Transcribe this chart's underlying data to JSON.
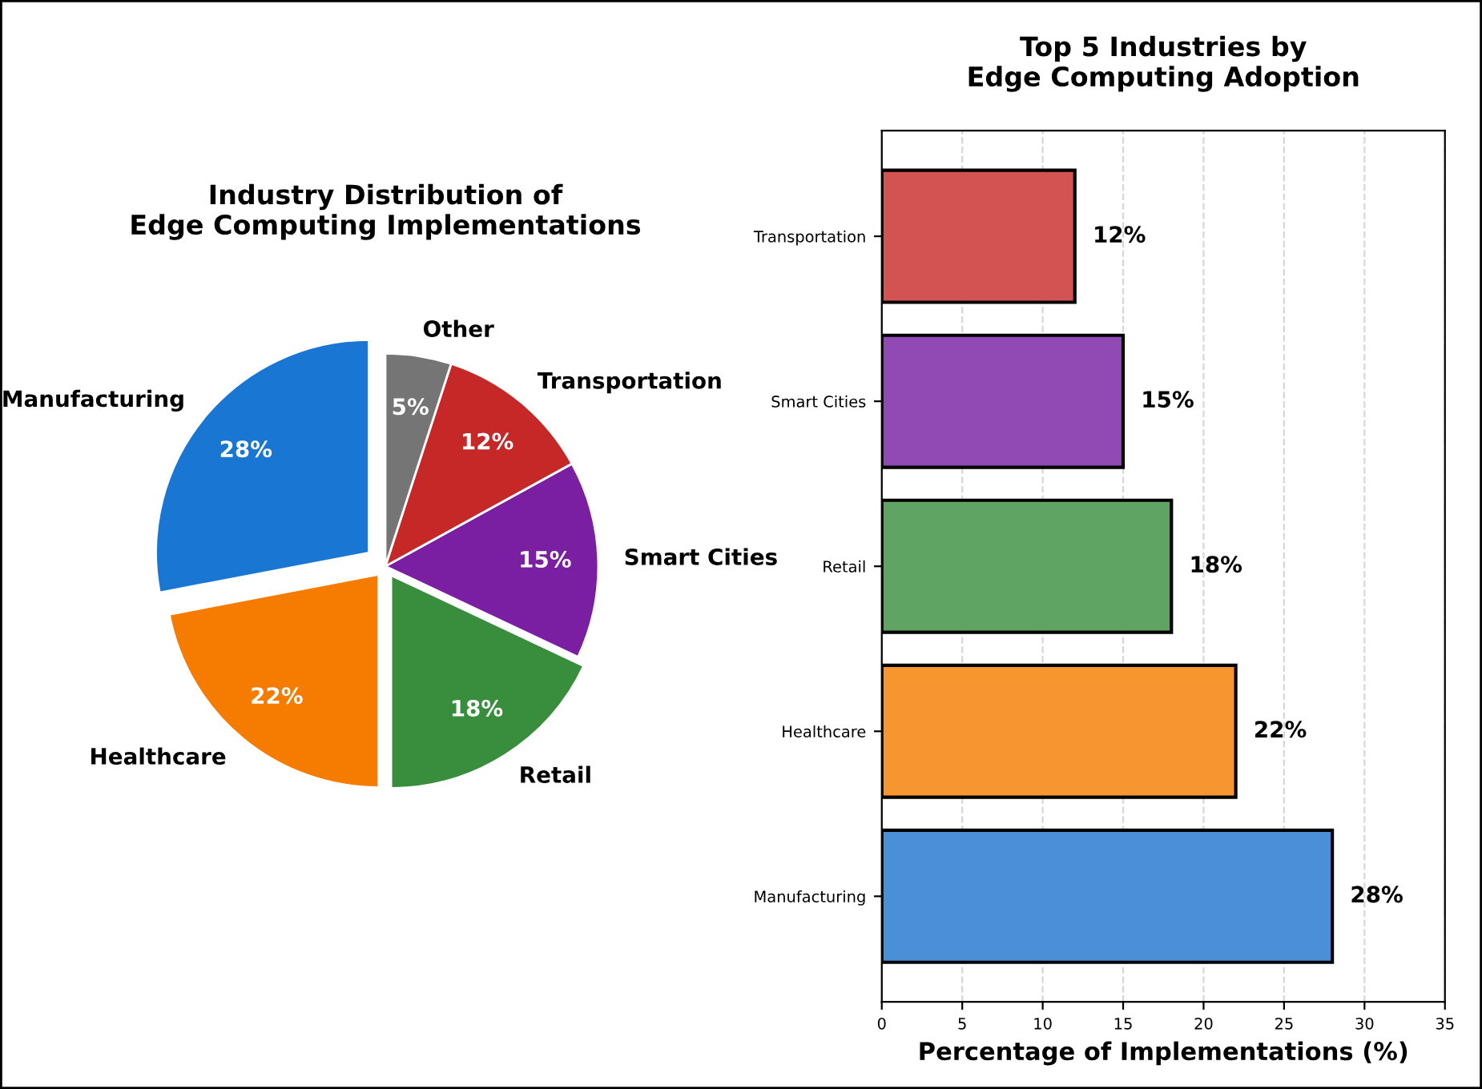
{
  "chart_data": [
    {
      "type": "pie",
      "title": "Industry Distribution of\nEdge Computing Implementations",
      "categories": [
        "Manufacturing",
        "Healthcare",
        "Retail",
        "Smart Cities",
        "Transportation",
        "Other"
      ],
      "values": [
        28,
        22,
        18,
        15,
        12,
        5
      ],
      "colors": [
        "#1976d2",
        "#f57c00",
        "#388e3c",
        "#7b1fa2",
        "#c62828",
        "#757575"
      ],
      "value_labels": [
        "28%",
        "22%",
        "18%",
        "15%",
        "12%",
        "5%"
      ]
    },
    {
      "type": "bar",
      "orientation": "horizontal",
      "title": "Top 5 Industries by\nEdge Computing Adoption",
      "xlabel": "Percentage of Implementations (%)",
      "categories": [
        "Transportation",
        "Smart Cities",
        "Retail",
        "Healthcare",
        "Manufacturing"
      ],
      "values": [
        12,
        15,
        18,
        22,
        28
      ],
      "colors": [
        "#d35353",
        "#9149b4",
        "#5fa463",
        "#f7962f",
        "#4a90d9"
      ],
      "value_labels": [
        "12%",
        "15%",
        "18%",
        "22%",
        "28%"
      ],
      "xlim": [
        0,
        35
      ],
      "xticks": [
        0,
        5,
        10,
        15,
        20,
        25,
        30,
        35
      ],
      "grid": "x"
    }
  ]
}
